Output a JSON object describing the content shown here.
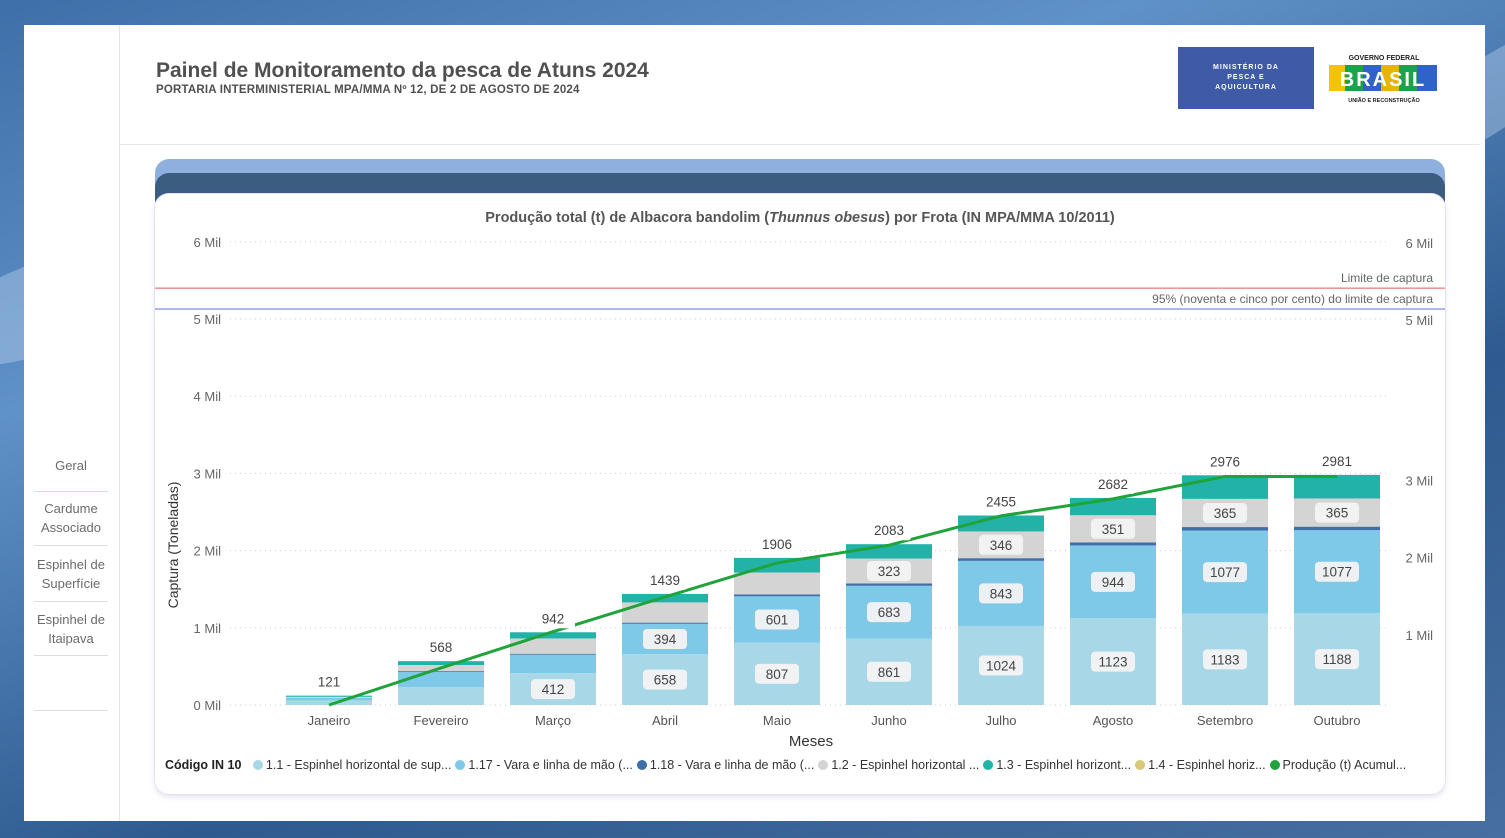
{
  "header": {
    "title": "Painel de Monitoramento da pesca de Atuns 2024",
    "subtitle": "PORTARIA INTERMINISTERIAL MPA/MMA Nº 12, DE 2 DE AGOSTO DE 2024"
  },
  "logos": {
    "mpa": [
      "MINISTÉRIO DA",
      "PESCA E",
      "AQUICULTURA"
    ],
    "gov_top": "GOVERNO FEDERAL",
    "gov_word": "BRASIL",
    "gov_bottom": "UNIÃO E RECONSTRUÇÃO"
  },
  "sidebar": {
    "items": [
      {
        "label": "Geral"
      },
      {
        "label": "Cardume Associado"
      },
      {
        "label": "Espinhel de Superfície"
      },
      {
        "label": "Espinhel de Itaipava"
      }
    ]
  },
  "chart_data": {
    "type": "bar",
    "stacked": true,
    "title_prefix": "Produção total (t) de Albacora bandolim (",
    "title_species": "Thunnus obesus",
    "title_suffix": ") por Frota (IN MPA/MMA 10/2011)",
    "xlabel": "Meses",
    "ylabel": "Captura (Toneladas)",
    "ylim": [
      0,
      6000
    ],
    "yticks_left": [
      "0 Mil",
      "1 Mil",
      "2 Mil",
      "3 Mil",
      "4 Mil",
      "5 Mil",
      "6 Mil"
    ],
    "yticks_right": [
      "1 Mil",
      "2 Mil",
      "3 Mil",
      "5 Mil",
      "6 Mil"
    ],
    "grid": true,
    "legend_position": "bottom",
    "legend_title": "Código IN 10",
    "categories": [
      "Janeiro",
      "Fevereiro",
      "Março",
      "Abril",
      "Maio",
      "Junho",
      "Julho",
      "Agosto",
      "Setembro",
      "Outubro"
    ],
    "series": [
      {
        "name": "1.1 - Espinhel horizontal de sup...",
        "color": "#a8d8e8",
        "values": [
          60,
          230,
          412,
          658,
          807,
          861,
          1024,
          1123,
          1183,
          1188
        ],
        "labeled": [
          false,
          false,
          true,
          true,
          true,
          true,
          true,
          true,
          true,
          true
        ]
      },
      {
        "name": "1.17 - Vara e linha de mão (...",
        "color": "#7ec8e8",
        "values": [
          30,
          200,
          240,
          394,
          601,
          683,
          843,
          944,
          1077,
          1077
        ],
        "labeled": [
          false,
          false,
          false,
          true,
          true,
          true,
          true,
          true,
          true,
          true
        ]
      },
      {
        "name": "1.18 - Vara e linha de mão (...",
        "color": "#3f6fa8",
        "values": [
          2,
          10,
          12,
          15,
          25,
          30,
          35,
          40,
          45,
          45
        ],
        "labeled": [
          false,
          false,
          false,
          false,
          false,
          false,
          false,
          false,
          false,
          false
        ]
      },
      {
        "name": "1.2 - Espinhel horizontal ...",
        "color": "#d4d4d4",
        "values": [
          14,
          78,
          198,
          262,
          283,
          323,
          346,
          351,
          365,
          365
        ],
        "labeled": [
          false,
          false,
          false,
          false,
          false,
          true,
          true,
          true,
          true,
          true
        ]
      },
      {
        "name": "1.3 - Espinhel horizont...",
        "color": "#22b2a8",
        "values": [
          15,
          50,
          80,
          110,
          190,
          186,
          207,
          224,
          306,
          306
        ],
        "labeled": [
          false,
          false,
          false,
          false,
          false,
          false,
          false,
          false,
          false,
          false
        ]
      },
      {
        "name": "1.4 - Espinhel horiz...",
        "color": "#d9c878",
        "values": [
          0,
          0,
          0,
          0,
          0,
          0,
          0,
          0,
          0,
          0
        ],
        "labeled": [
          false,
          false,
          false,
          false,
          false,
          false,
          false,
          false,
          false,
          false
        ]
      }
    ],
    "totals": [
      121,
      568,
      942,
      1439,
      1906,
      2083,
      2455,
      2682,
      2976,
      2981
    ],
    "line_series": {
      "name": "Produção (t) Acumul...",
      "color": "#1fa33a",
      "values": [
        0,
        480,
        950,
        1400,
        1840,
        2070,
        2450,
        2670,
        2960,
        2960
      ]
    },
    "reference_lines": [
      {
        "label": "Limite de captura",
        "value": 5400,
        "color": "#e05a5a"
      },
      {
        "label": "95% (noventa e cinco por cento) do limite de captura",
        "value": 5130,
        "color": "#5a6fd6"
      }
    ]
  }
}
